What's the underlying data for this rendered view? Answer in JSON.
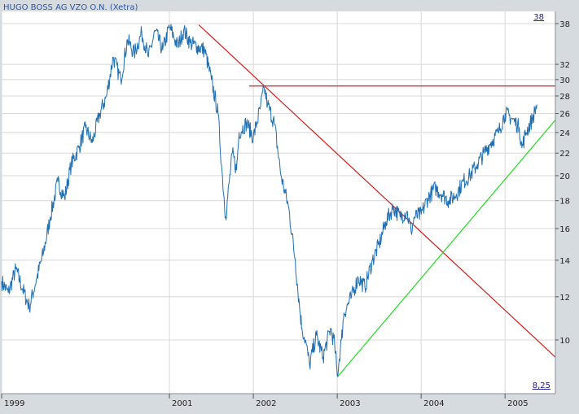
{
  "colors": {
    "plot_bg": "#ffffff",
    "frame_bg": "#d6dbe0",
    "grid": "#d8d8d8",
    "price": "#1f6fb2",
    "resistance": "#d42020",
    "horizontal": "#d42020",
    "support": "#22dd22",
    "title": "#2a55a4",
    "axis_text": "#222222",
    "marker_text": "#1a1a8c"
  },
  "chart_data": {
    "type": "line",
    "title": "HUGO BOSS AG VZO O.N. (Xetra)",
    "scale": "log",
    "ylim": [
      8.25,
      38
    ],
    "xlim": [
      1999.0,
      2005.6
    ],
    "y_ticks": [
      10,
      12,
      14,
      16,
      18,
      20,
      22,
      24,
      26,
      28,
      30,
      32,
      38
    ],
    "y_tick_labels": [
      "10",
      "12",
      "14",
      "16",
      "18",
      "20",
      "22",
      "24",
      "26",
      "28",
      "30",
      "32",
      "38"
    ],
    "x_ticks": [
      1999,
      2001,
      2002,
      2003,
      2004,
      2005
    ],
    "x_tick_labels": [
      "1999",
      "2001",
      "2002",
      "2003",
      "2004",
      "2005"
    ],
    "max_marker": "38",
    "min_marker": "8,25",
    "series": [
      {
        "name": "HUGO BOSS AG VZO O.N.",
        "x": [
          1999.0,
          1999.08,
          1999.17,
          1999.25,
          1999.33,
          1999.42,
          1999.5,
          1999.58,
          1999.67,
          1999.75,
          1999.83,
          1999.92,
          2000.0,
          2000.08,
          2000.17,
          2000.25,
          2000.33,
          2000.42,
          2000.5,
          2000.58,
          2000.67,
          2000.75,
          2000.83,
          2000.92,
          2001.0,
          2001.05,
          2001.1,
          2001.17,
          2001.25,
          2001.33,
          2001.42,
          2001.5,
          2001.58,
          2001.62,
          2001.67,
          2001.75,
          2001.8,
          2001.83,
          2001.92,
          2002.0,
          2002.08,
          2002.13,
          2002.17,
          2002.25,
          2002.33,
          2002.42,
          2002.5,
          2002.55,
          2002.58,
          2002.62,
          2002.67,
          2002.75,
          2002.83,
          2002.92,
          2002.97,
          2003.0,
          2003.05,
          2003.08,
          2003.17,
          2003.25,
          2003.33,
          2003.42,
          2003.5,
          2003.58,
          2003.67,
          2003.75,
          2003.83,
          2003.88,
          2003.92,
          2004.0,
          2004.08,
          2004.17,
          2004.25,
          2004.33,
          2004.42,
          2004.5,
          2004.58,
          2004.67,
          2004.75,
          2004.83,
          2004.92,
          2005.0,
          2005.08,
          2005.17,
          2005.2,
          2005.25,
          2005.33,
          2005.38
        ],
        "values": [
          12.8,
          12.2,
          13.5,
          12.4,
          11.5,
          13.0,
          14.5,
          16.8,
          19.5,
          18.2,
          21.0,
          22.5,
          24.5,
          23.0,
          26.0,
          28.0,
          33.0,
          30.0,
          35.5,
          33.5,
          36.5,
          33.0,
          36.8,
          34.0,
          37.5,
          36.0,
          34.5,
          37.0,
          35.0,
          34.5,
          34.0,
          30.0,
          26.0,
          21.0,
          16.8,
          22.0,
          20.5,
          24.0,
          25.0,
          23.5,
          26.5,
          29.0,
          27.0,
          25.0,
          20.0,
          17.5,
          14.0,
          11.5,
          10.5,
          10.0,
          9.0,
          10.2,
          9.3,
          10.5,
          9.8,
          8.6,
          10.0,
          11.2,
          12.0,
          13.0,
          12.5,
          14.0,
          15.0,
          16.5,
          17.5,
          16.8,
          17.2,
          15.8,
          16.8,
          17.0,
          18.2,
          19.0,
          18.5,
          18.0,
          18.5,
          19.5,
          20.0,
          21.0,
          22.0,
          23.0,
          24.0,
          26.0,
          25.5,
          24.5,
          22.5,
          24.0,
          25.5,
          27.0
        ]
      }
    ],
    "trend_lines": [
      {
        "name": "downtrend",
        "from": [
          2001.35,
          37.8
        ],
        "to": [
          2005.6,
          9.3
        ]
      },
      {
        "name": "horizontal",
        "from": [
          2001.95,
          29.2
        ],
        "to": [
          2005.6,
          29.2
        ]
      },
      {
        "name": "uptrend",
        "from": [
          2003.0,
          8.55
        ],
        "to": [
          2005.6,
          25.3
        ]
      }
    ]
  }
}
